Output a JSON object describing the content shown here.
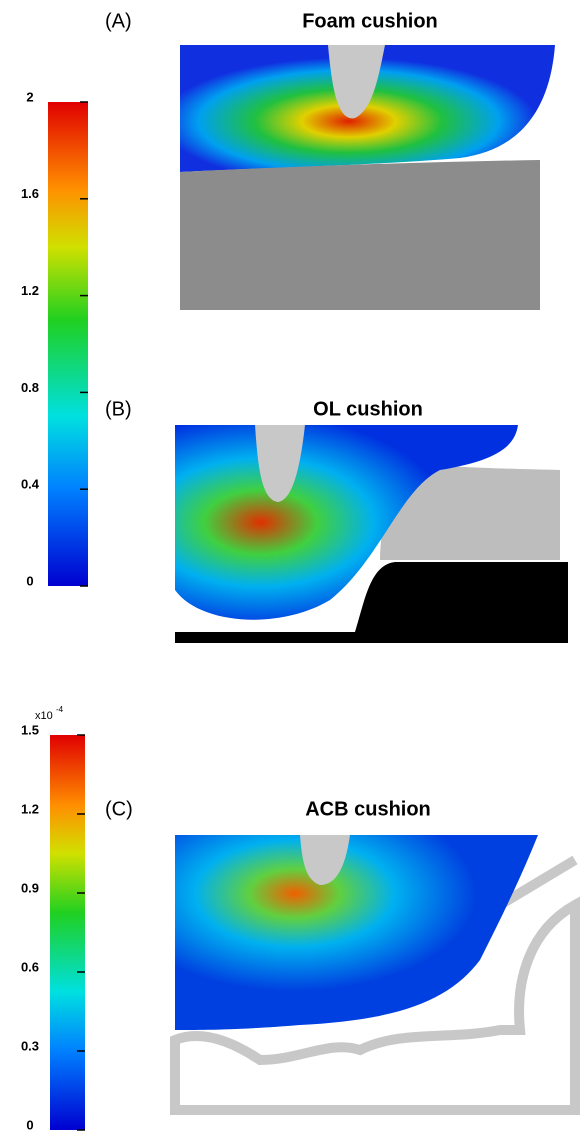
{
  "colorbars": [
    {
      "lim": [
        0,
        2
      ],
      "ticks": [
        0,
        0.4,
        0.8,
        1.2,
        1.6,
        2
      ]
    },
    {
      "lim": [
        0,
        1.5
      ],
      "ticks": [
        0,
        0.3,
        0.6,
        0.9,
        1.2,
        1.5
      ],
      "multiplier": "x10",
      "exponent": "-4"
    }
  ],
  "panels": [
    {
      "label": "(A)",
      "title": "Foam cushion"
    },
    {
      "label": "(B)",
      "title": "OL cushion"
    },
    {
      "label": "(C)",
      "title": "ACB cushion"
    }
  ]
}
